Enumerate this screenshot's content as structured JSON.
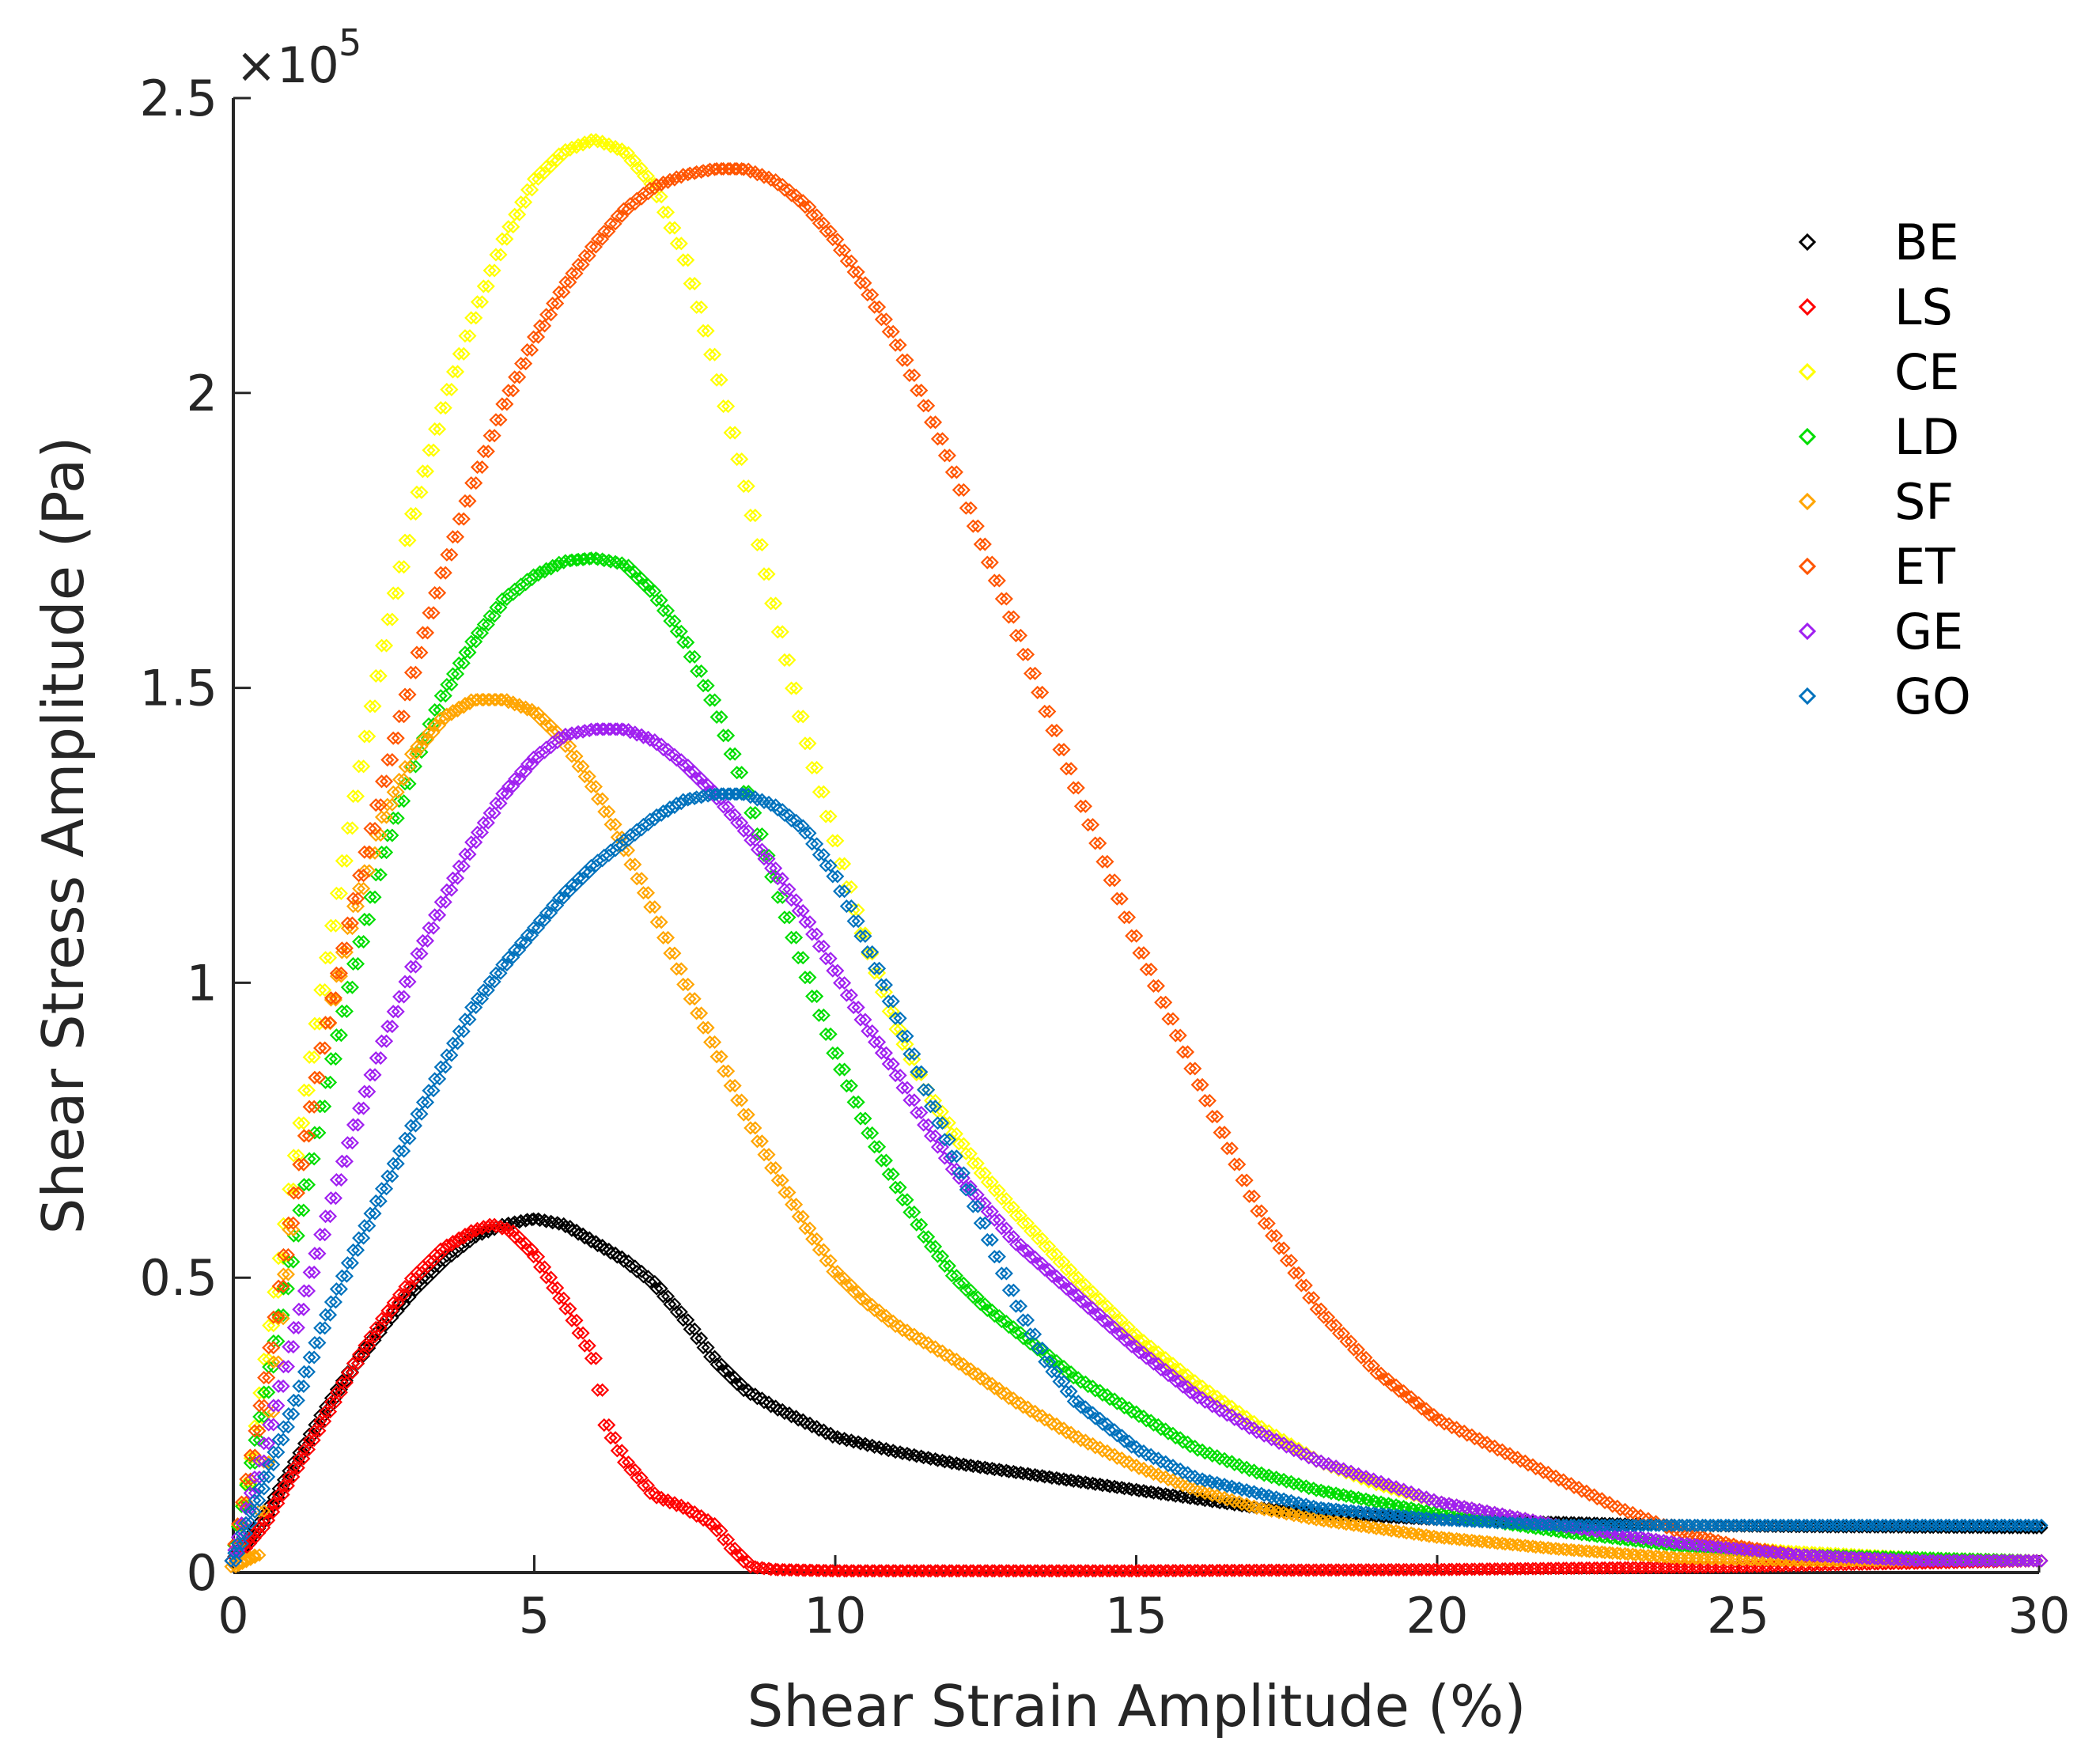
{
  "chart_data": {
    "type": "scatter",
    "title": "",
    "xlabel": "Shear Strain Amplitude (%)",
    "ylabel": "Shear Stress Amplitude (Pa)",
    "y_exponent_label": "×10",
    "y_exponent_power": "5",
    "xlim": [
      0,
      30
    ],
    "ylim": [
      0,
      2.5
    ],
    "y_scale_factor": 100000,
    "x_ticks": [
      0,
      5,
      10,
      15,
      20,
      25,
      30
    ],
    "x_tick_labels": [
      "0",
      "5",
      "10",
      "15",
      "20",
      "25",
      "30"
    ],
    "y_ticks": [
      0,
      0.5,
      1,
      1.5,
      2,
      2.5
    ],
    "y_tick_labels": [
      "0",
      "0.5",
      "1",
      "1.5",
      "2",
      "2.5"
    ],
    "grid": false,
    "legend_position": "top-right",
    "marker": "diamond",
    "series": [
      {
        "name": "BE",
        "color": "#000000",
        "x": [
          0,
          0.5,
          1,
          1.5,
          2,
          2.5,
          3,
          3.5,
          4,
          4.5,
          5,
          5.5,
          6,
          6.5,
          7,
          7.5,
          8,
          8.5,
          9,
          10,
          11,
          12,
          13,
          14,
          15,
          16,
          17,
          18,
          19,
          20,
          22,
          24,
          26,
          28,
          30
        ],
        "y": [
          0.02,
          0.09,
          0.18,
          0.27,
          0.35,
          0.42,
          0.48,
          0.53,
          0.57,
          0.59,
          0.6,
          0.59,
          0.56,
          0.53,
          0.49,
          0.43,
          0.36,
          0.31,
          0.28,
          0.23,
          0.205,
          0.185,
          0.17,
          0.155,
          0.14,
          0.125,
          0.11,
          0.1,
          0.095,
          0.09,
          0.085,
          0.08,
          0.078,
          0.077,
          0.076
        ]
      },
      {
        "name": "LS",
        "color": "#ff0000",
        "x": [
          0,
          0.5,
          1,
          1.5,
          2,
          2.5,
          3,
          3.5,
          4,
          4.3,
          4.6,
          5,
          5.3,
          5.6,
          6,
          6.2,
          6.5,
          7,
          7.5,
          8,
          8.3,
          8.6,
          9,
          10,
          12,
          15,
          20,
          25,
          30
        ],
        "y": [
          0.02,
          0.08,
          0.17,
          0.26,
          0.35,
          0.43,
          0.5,
          0.55,
          0.58,
          0.59,
          0.58,
          0.54,
          0.49,
          0.44,
          0.36,
          0.25,
          0.19,
          0.13,
          0.11,
          0.08,
          0.04,
          0.01,
          0.005,
          0.003,
          0.003,
          0.003,
          0.005,
          0.01,
          0.02
        ]
      },
      {
        "name": "CE",
        "color": "#ffff00",
        "x": [
          0,
          0.3,
          0.6,
          1,
          1.5,
          2,
          2.5,
          3,
          3.5,
          4,
          4.5,
          5,
          5.5,
          6,
          6.5,
          7,
          7.5,
          8,
          8.5,
          9,
          9.5,
          10,
          10.5,
          11,
          11.5,
          12,
          12.5,
          13,
          14,
          15,
          16,
          17,
          18,
          19,
          20,
          22,
          24,
          26,
          28,
          30
        ],
        "y": [
          0.02,
          0.18,
          0.4,
          0.68,
          1.0,
          1.3,
          1.57,
          1.8,
          1.98,
          2.13,
          2.26,
          2.36,
          2.41,
          2.43,
          2.41,
          2.35,
          2.23,
          2.05,
          1.85,
          1.63,
          1.42,
          1.24,
          1.07,
          0.93,
          0.82,
          0.74,
          0.67,
          0.61,
          0.5,
          0.4,
          0.32,
          0.25,
          0.19,
          0.15,
          0.12,
          0.08,
          0.05,
          0.035,
          0.025,
          0.02
        ]
      },
      {
        "name": "LD",
        "color": "#00dd00",
        "x": [
          0,
          0.5,
          1,
          1.5,
          2,
          2.5,
          3,
          3.5,
          4,
          4.5,
          5,
          5.5,
          6,
          6.5,
          7,
          7.5,
          8,
          8.5,
          9,
          9.5,
          10,
          10.5,
          11,
          11.5,
          12,
          12.5,
          13,
          13.5,
          14,
          15,
          16,
          17,
          18,
          20,
          22,
          24,
          26,
          28,
          30
        ],
        "y": [
          0.02,
          0.28,
          0.55,
          0.8,
          1.02,
          1.22,
          1.37,
          1.49,
          1.58,
          1.65,
          1.69,
          1.715,
          1.72,
          1.71,
          1.66,
          1.58,
          1.47,
          1.33,
          1.17,
          1.02,
          0.88,
          0.76,
          0.66,
          0.57,
          0.5,
          0.45,
          0.41,
          0.37,
          0.33,
          0.27,
          0.21,
          0.17,
          0.14,
          0.1,
          0.07,
          0.045,
          0.03,
          0.025,
          0.02
        ]
      },
      {
        "name": "SF",
        "color": "#ffa500",
        "x": [
          0,
          0.4,
          0.7,
          1,
          1.5,
          2,
          2.5,
          3,
          3.5,
          4,
          4.5,
          5,
          5.5,
          6,
          6.5,
          7,
          7.5,
          8,
          8.5,
          9,
          9.5,
          10,
          10.5,
          11,
          11.5,
          12,
          13,
          14,
          15,
          16,
          17,
          18,
          20,
          22,
          24,
          26,
          28,
          30
        ],
        "y": [
          0.01,
          0.03,
          0.35,
          0.62,
          0.9,
          1.12,
          1.28,
          1.39,
          1.45,
          1.48,
          1.48,
          1.46,
          1.41,
          1.33,
          1.23,
          1.12,
          1.0,
          0.89,
          0.78,
          0.68,
          0.59,
          0.51,
          0.46,
          0.42,
          0.39,
          0.36,
          0.29,
          0.23,
          0.18,
          0.14,
          0.11,
          0.09,
          0.06,
          0.04,
          0.025,
          0.02,
          0.02,
          0.02
        ]
      },
      {
        "name": "ET",
        "color": "#ff5500",
        "x": [
          0,
          0.5,
          1,
          1.5,
          2,
          2.5,
          3,
          3.5,
          4,
          4.5,
          5,
          5.5,
          6,
          6.5,
          7,
          7.5,
          8,
          8.5,
          9,
          9.5,
          10,
          10.5,
          11,
          11.5,
          12,
          13,
          14,
          15,
          16,
          17,
          18,
          19,
          20,
          21,
          22,
          23,
          24,
          25,
          26,
          28,
          30
        ],
        "y": [
          0.02,
          0.3,
          0.62,
          0.9,
          1.13,
          1.34,
          1.53,
          1.7,
          1.85,
          1.98,
          2.09,
          2.18,
          2.25,
          2.31,
          2.35,
          2.37,
          2.38,
          2.38,
          2.36,
          2.32,
          2.26,
          2.18,
          2.09,
          1.98,
          1.86,
          1.6,
          1.33,
          1.07,
          0.84,
          0.62,
          0.45,
          0.34,
          0.26,
          0.21,
          0.16,
          0.11,
          0.07,
          0.045,
          0.03,
          0.02,
          0.02
        ]
      },
      {
        "name": "GE",
        "color": "#a020f0",
        "x": [
          0,
          0.5,
          1,
          1.5,
          2,
          2.5,
          3,
          3.5,
          4,
          4.5,
          5,
          5.5,
          6,
          6.5,
          7,
          7.5,
          8,
          8.5,
          9,
          9.5,
          10,
          10.5,
          11,
          11.5,
          12,
          12.5,
          13,
          14,
          15,
          16,
          17,
          18,
          20,
          22,
          24,
          26,
          28,
          30
        ],
        "y": [
          0.02,
          0.2,
          0.4,
          0.58,
          0.75,
          0.9,
          1.03,
          1.14,
          1.24,
          1.32,
          1.38,
          1.42,
          1.43,
          1.43,
          1.41,
          1.37,
          1.32,
          1.26,
          1.19,
          1.11,
          1.02,
          0.93,
          0.85,
          0.76,
          0.68,
          0.62,
          0.56,
          0.47,
          0.38,
          0.3,
          0.24,
          0.19,
          0.12,
          0.08,
          0.05,
          0.03,
          0.02,
          0.02
        ]
      },
      {
        "name": "GO",
        "color": "#0072bd",
        "x": [
          0,
          0.5,
          1,
          1.5,
          2,
          2.5,
          3,
          3.5,
          4,
          4.5,
          5,
          5.5,
          6,
          6.5,
          7,
          7.5,
          8,
          8.5,
          9,
          9.5,
          10,
          10.5,
          11,
          11.5,
          12,
          12.5,
          13,
          13.5,
          14,
          15,
          16,
          18,
          20,
          22,
          24,
          26,
          28,
          30
        ],
        "y": [
          0.02,
          0.15,
          0.28,
          0.42,
          0.54,
          0.65,
          0.76,
          0.86,
          0.96,
          1.03,
          1.09,
          1.15,
          1.2,
          1.24,
          1.28,
          1.31,
          1.32,
          1.32,
          1.3,
          1.26,
          1.18,
          1.07,
          0.95,
          0.82,
          0.7,
          0.58,
          0.46,
          0.36,
          0.29,
          0.21,
          0.16,
          0.11,
          0.09,
          0.08,
          0.08,
          0.08,
          0.08,
          0.08
        ]
      }
    ]
  }
}
